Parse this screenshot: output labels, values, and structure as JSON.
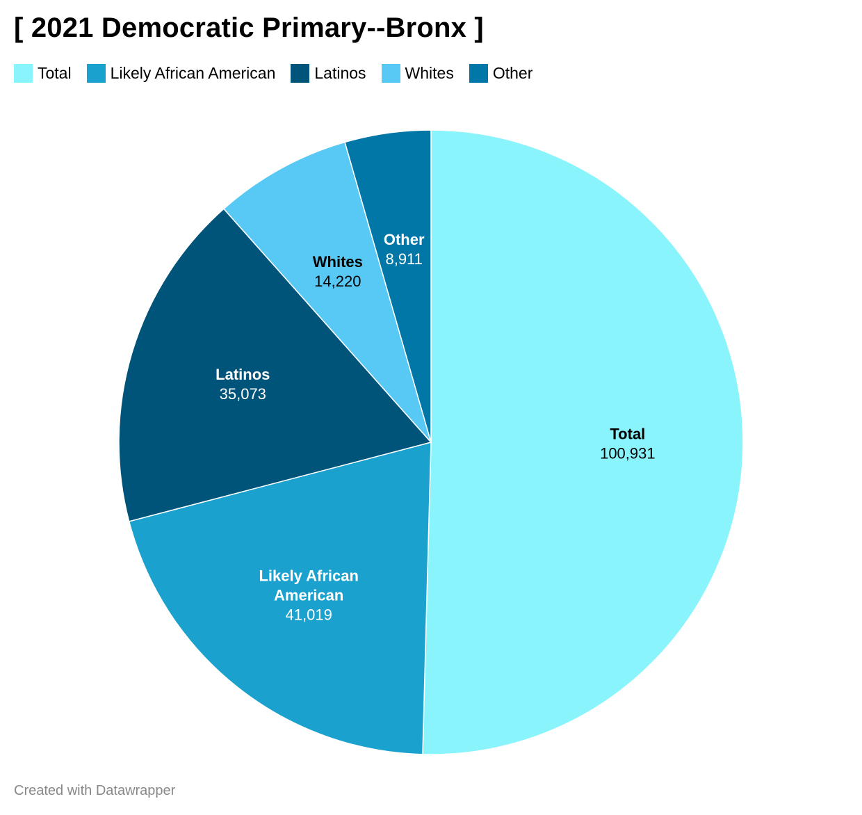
{
  "title": "[ 2021 Democratic Primary--Bronx ]",
  "footer": "Created with Datawrapper",
  "chart_data": {
    "type": "pie",
    "title": "[ 2021 Democratic Primary--Bronx ]",
    "legend_position": "top-left",
    "slices": [
      {
        "label": "Total",
        "label_lines": [
          "Total"
        ],
        "value": 100931,
        "value_text": "100,931",
        "color": "#8AF4FC",
        "label_color": "#000000"
      },
      {
        "label": "Likely African American",
        "label_lines": [
          "Likely African",
          "American"
        ],
        "value": 41019,
        "value_text": "41,019",
        "color": "#1AA1CD",
        "label_color": "#ffffff"
      },
      {
        "label": "Latinos",
        "label_lines": [
          "Latinos"
        ],
        "value": 35073,
        "value_text": "35,073",
        "color": "#00547A",
        "label_color": "#ffffff"
      },
      {
        "label": "Whites",
        "label_lines": [
          "Whites"
        ],
        "value": 14220,
        "value_text": "14,220",
        "color": "#58C9F5",
        "label_color": "#000000"
      },
      {
        "label": "Other",
        "label_lines": [
          "Other"
        ],
        "value": 8911,
        "value_text": "8,911",
        "color": "#0077A6",
        "label_color": "#ffffff"
      }
    ]
  }
}
